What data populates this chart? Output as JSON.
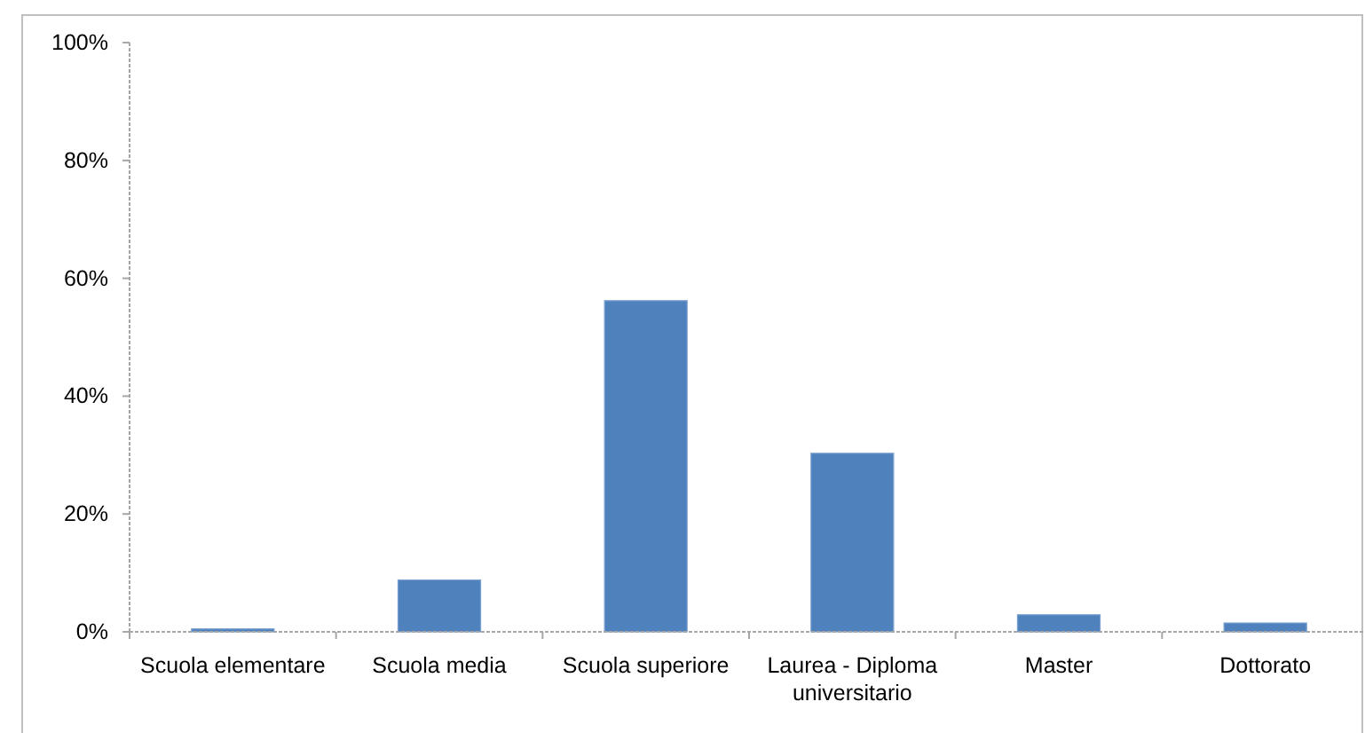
{
  "chart_data": {
    "type": "bar",
    "categories": [
      "Scuola elementare",
      "Scuola media",
      "Scuola superiore",
      "Laurea - Diploma universitario",
      "Master",
      "Dottorato"
    ],
    "values": [
      0.5,
      8.8,
      56.2,
      30.3,
      2.9,
      1.5
    ],
    "color": "#4f81bd",
    "ylim": [
      0,
      100
    ],
    "yticks": [
      {
        "value": 0,
        "label": "0%"
      },
      {
        "value": 20,
        "label": "20%"
      },
      {
        "value": 40,
        "label": "40%"
      },
      {
        "value": 60,
        "label": "60%"
      },
      {
        "value": 80,
        "label": "80%"
      },
      {
        "value": 100,
        "label": "100%"
      }
    ],
    "grid": false
  }
}
